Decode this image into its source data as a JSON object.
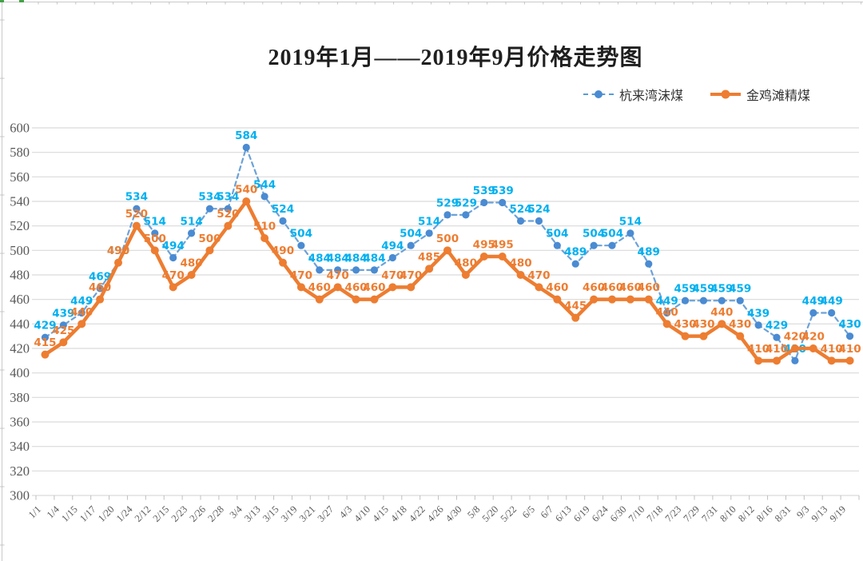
{
  "page": {
    "background": "#ffffff"
  },
  "frame": {
    "edge_color": "#c9c9c9",
    "stub_color": "#c4c4c4",
    "accent_color": "#44a148"
  },
  "chart_data": {
    "type": "line",
    "title": "2019年1月——2019年9月价格走势图",
    "categories": [
      "1/1",
      "1/4",
      "1/15",
      "1/17",
      "1/20",
      "1/24",
      "2/12",
      "2/15",
      "2/23",
      "2/26",
      "2/28",
      "3/4",
      "3/13",
      "3/15",
      "3/19",
      "3/21",
      "3/27",
      "4/3",
      "4/10",
      "4/15",
      "4/18",
      "4/22",
      "4/26",
      "4/30",
      "5/8",
      "5/20",
      "5/22",
      "6/5",
      "6/7",
      "6/13",
      "6/19",
      "6/24",
      "6/30",
      "7/10",
      "7/18",
      "7/23",
      "7/29",
      "7/31",
      "8/10",
      "8/12",
      "8/16",
      "8/31",
      "9/3",
      "9/13",
      "9/19"
    ],
    "series": [
      {
        "name": "杭来湾沫煤",
        "style": "dashed",
        "line_color": "#6ca2d8",
        "marker_color": "#4a8bd2",
        "label_color": "#00b0f0",
        "values": [
          429,
          439,
          449,
          469,
          490,
          534,
          514,
          494,
          514,
          534,
          534,
          584,
          544,
          524,
          504,
          484,
          484,
          484,
          484,
          494,
          504,
          514,
          529,
          529,
          539,
          539,
          524,
          524,
          504,
          489,
          504,
          504,
          514,
          489,
          449,
          459,
          459,
          459,
          459,
          439,
          429,
          410,
          449,
          449,
          430
        ]
      },
      {
        "name": "金鸡滩精煤",
        "style": "solid",
        "line_color": "#ed7d31",
        "marker_color": "#ed7d31",
        "label_color": "#ed7d31",
        "values": [
          415,
          425,
          440,
          460,
          490,
          520,
          500,
          470,
          480,
          500,
          520,
          540,
          510,
          490,
          470,
          460,
          470,
          460,
          460,
          470,
          470,
          485,
          500,
          480,
          495,
          495,
          480,
          470,
          460,
          445,
          460,
          460,
          460,
          460,
          440,
          430,
          430,
          440,
          430,
          410,
          410,
          420,
          420,
          410,
          410
        ]
      }
    ],
    "ylim": [
      300,
      600
    ],
    "ytick_step": 20,
    "grid": true,
    "legend_position": "top-right",
    "gridline_color": "#d9d9d9",
    "tick_color": "#bfbfbf",
    "axis_label_color": "#595959"
  }
}
